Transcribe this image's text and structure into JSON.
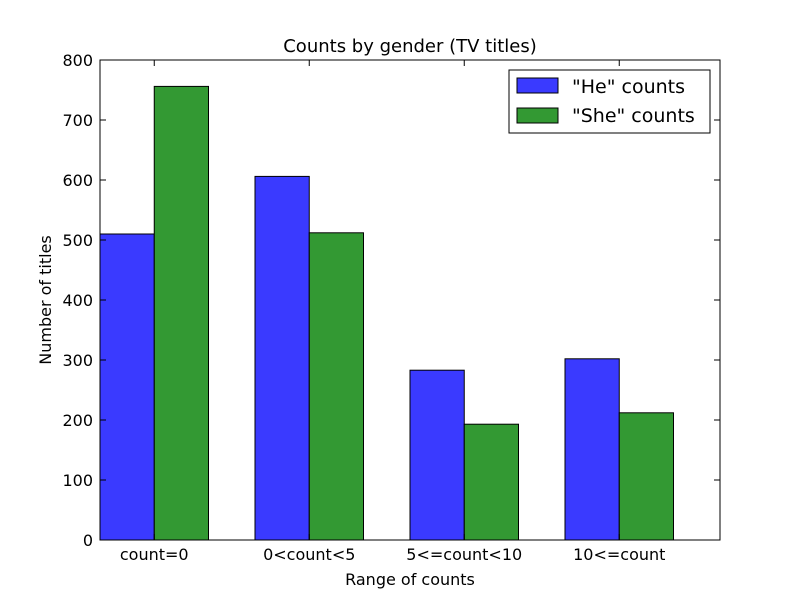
{
  "chart_data": {
    "type": "bar",
    "title": "Counts by gender (TV titles)",
    "xlabel": "Range of counts",
    "ylabel": "Number of titles",
    "categories": [
      "count=0",
      "0<count<5",
      "5<=count<10",
      "10<=count"
    ],
    "series": [
      {
        "name": "\"He\" counts",
        "values": [
          510,
          606,
          283,
          302
        ],
        "color": "#3a3aff"
      },
      {
        "name": "\"She\" counts",
        "values": [
          756,
          512,
          193,
          212
        ],
        "color": "#339933"
      }
    ],
    "ylim": [
      0,
      800
    ],
    "yticks": [
      0,
      100,
      200,
      300,
      400,
      500,
      600,
      700,
      800
    ],
    "grid": false,
    "legend_position": "top-right"
  }
}
